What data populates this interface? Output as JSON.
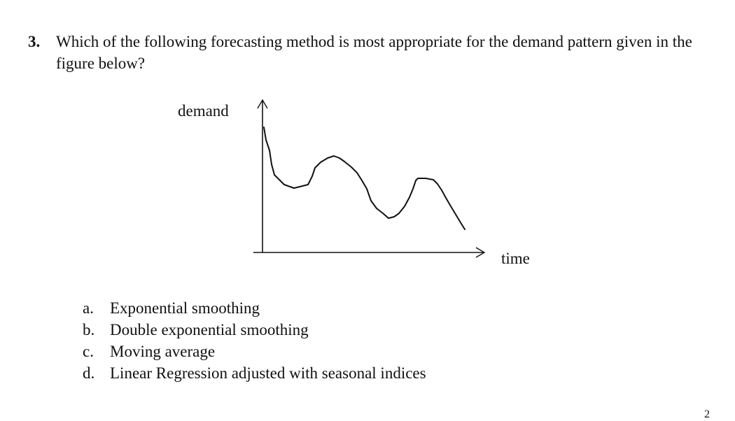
{
  "question": {
    "number": "3.",
    "text": "Which of the following forecasting method is most appropriate for the demand pattern given in the figure below?"
  },
  "figure": {
    "y_axis_label": "demand",
    "x_axis_label": "time",
    "curve_description": "Hand-drawn declining demand curve with repeating oscillations (peaks and troughs) over time",
    "curve_points": [
      [
        377,
        182
      ],
      [
        380,
        200
      ],
      [
        385,
        215
      ],
      [
        388,
        235
      ],
      [
        392,
        250
      ],
      [
        400,
        258
      ],
      [
        406,
        264
      ],
      [
        420,
        269
      ],
      [
        432,
        266
      ],
      [
        440,
        264
      ],
      [
        446,
        252
      ],
      [
        450,
        240
      ],
      [
        458,
        232
      ],
      [
        468,
        226
      ],
      [
        477,
        223
      ],
      [
        485,
        226
      ],
      [
        492,
        231
      ],
      [
        502,
        239
      ],
      [
        510,
        247
      ],
      [
        517,
        258
      ],
      [
        524,
        270
      ],
      [
        530,
        287
      ],
      [
        538,
        298
      ],
      [
        547,
        305
      ],
      [
        555,
        312
      ],
      [
        563,
        310
      ],
      [
        570,
        305
      ],
      [
        578,
        295
      ],
      [
        585,
        282
      ],
      [
        590,
        270
      ],
      [
        594,
        258
      ],
      [
        597,
        255
      ],
      [
        608,
        255
      ],
      [
        619,
        257
      ],
      [
        625,
        263
      ],
      [
        631,
        272
      ],
      [
        637,
        283
      ],
      [
        644,
        295
      ],
      [
        650,
        305
      ],
      [
        656,
        315
      ],
      [
        664,
        328
      ]
    ]
  },
  "options": [
    {
      "letter": "a.",
      "text": "Exponential smoothing"
    },
    {
      "letter": "b.",
      "text": "Double exponential smoothing"
    },
    {
      "letter": "c.",
      "text": "Moving average"
    },
    {
      "letter": "d.",
      "text": "Linear Regression adjusted with seasonal indices"
    }
  ],
  "page_mark": "2"
}
